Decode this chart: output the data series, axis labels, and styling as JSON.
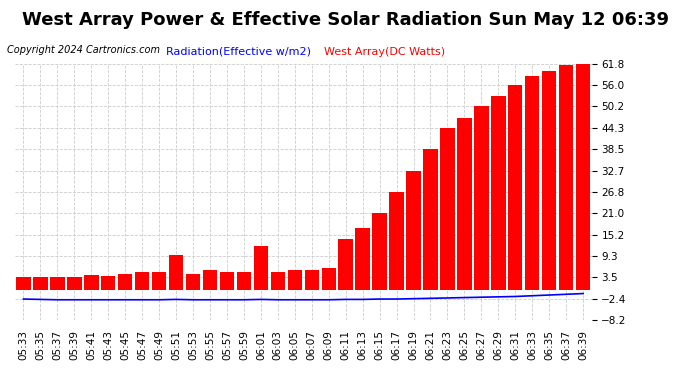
{
  "title": "West Array Power & Effective Solar Radiation Sun May 12 06:39",
  "copyright": "Copyright 2024 Cartronics.com",
  "legend_radiation": "Radiation(Effective w/m2)",
  "legend_west": "West Array(DC Watts)",
  "background_color": "#ffffff",
  "plot_bg_color": "#ffffff",
  "grid_color": "#cccccc",
  "bar_color": "#ff0000",
  "line_color": "#0000ff",
  "ylim_min": -8.2,
  "ylim_max": 61.8,
  "yticks": [
    61.8,
    56.0,
    50.2,
    44.3,
    38.5,
    32.7,
    26.8,
    21.0,
    15.2,
    9.3,
    3.5,
    -2.4,
    -8.2
  ],
  "time_labels": [
    "05:33",
    "05:35",
    "05:37",
    "05:39",
    "05:41",
    "05:43",
    "05:45",
    "05:47",
    "05:49",
    "05:51",
    "05:53",
    "05:55",
    "05:57",
    "05:59",
    "06:01",
    "06:03",
    "06:05",
    "06:07",
    "06:09",
    "06:11",
    "06:13",
    "06:15",
    "06:17",
    "06:19",
    "06:21",
    "06:23",
    "06:25",
    "06:27",
    "06:29",
    "06:31",
    "06:33",
    "06:35",
    "06:37",
    "06:39"
  ],
  "bar_values": [
    3.5,
    3.5,
    3.5,
    3.5,
    4.2,
    4.0,
    4.5,
    5.0,
    5.0,
    9.5,
    4.5,
    5.5,
    5.0,
    5.0,
    12.0,
    5.0,
    5.5,
    5.5,
    6.0,
    14.0,
    17.0,
    21.0,
    26.8,
    32.7,
    38.5,
    44.3,
    47.0,
    50.2,
    53.0,
    56.0,
    58.5,
    60.0,
    61.5,
    61.8
  ],
  "line_values": [
    -2.4,
    -2.5,
    -2.6,
    -2.6,
    -2.6,
    -2.6,
    -2.6,
    -2.6,
    -2.6,
    -2.5,
    -2.6,
    -2.6,
    -2.6,
    -2.6,
    -2.5,
    -2.6,
    -2.6,
    -2.6,
    -2.6,
    -2.5,
    -2.5,
    -2.4,
    -2.4,
    -2.3,
    -2.2,
    -2.1,
    -2.0,
    -1.9,
    -1.8,
    -1.7,
    -1.5,
    -1.3,
    -1.1,
    -0.9
  ],
  "title_fontsize": 13,
  "copyright_fontsize": 7,
  "legend_fontsize": 8,
  "tick_fontsize": 7.5
}
